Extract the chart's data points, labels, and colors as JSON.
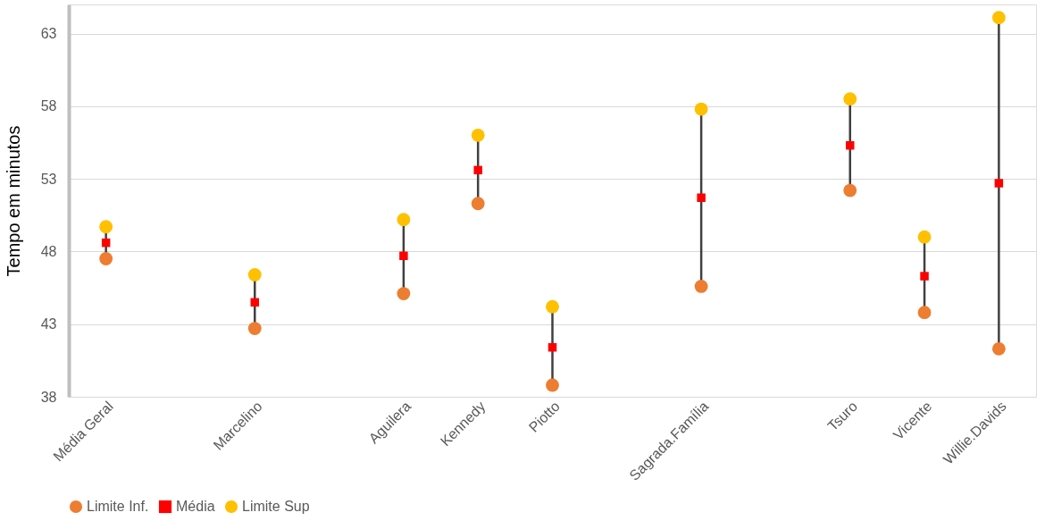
{
  "chart_data": {
    "type": "scatter",
    "ylabel": "Tempo em minutos",
    "categories": [
      "Média Geral",
      null,
      "Marcelino",
      null,
      "Aguilera",
      "Kennedy",
      "Piotto",
      null,
      "Sagrada.Família",
      null,
      "Tsuro",
      "Vicente",
      "Willie.Davids"
    ],
    "series": [
      {
        "name": "Limite Inf.",
        "color": "#ed7d31",
        "marker": "circle",
        "values": [
          47.5,
          null,
          42.7,
          null,
          45.1,
          51.3,
          38.8,
          null,
          45.6,
          null,
          52.2,
          43.8,
          41.3
        ]
      },
      {
        "name": "Média",
        "color": "#ff0000",
        "marker": "square",
        "values": [
          48.6,
          null,
          44.5,
          null,
          47.7,
          53.6,
          41.4,
          null,
          51.7,
          null,
          55.3,
          46.3,
          52.7
        ]
      },
      {
        "name": "Limite Sup",
        "color": "#ffc000",
        "marker": "circle",
        "values": [
          49.7,
          null,
          46.4,
          null,
          50.2,
          56.0,
          44.2,
          null,
          57.8,
          null,
          58.5,
          49.0,
          64.1
        ]
      }
    ],
    "ylim": [
      38,
      65
    ],
    "yticks": [
      38,
      43,
      48,
      53,
      58,
      63
    ],
    "grid": "y",
    "legend": "bottom"
  }
}
